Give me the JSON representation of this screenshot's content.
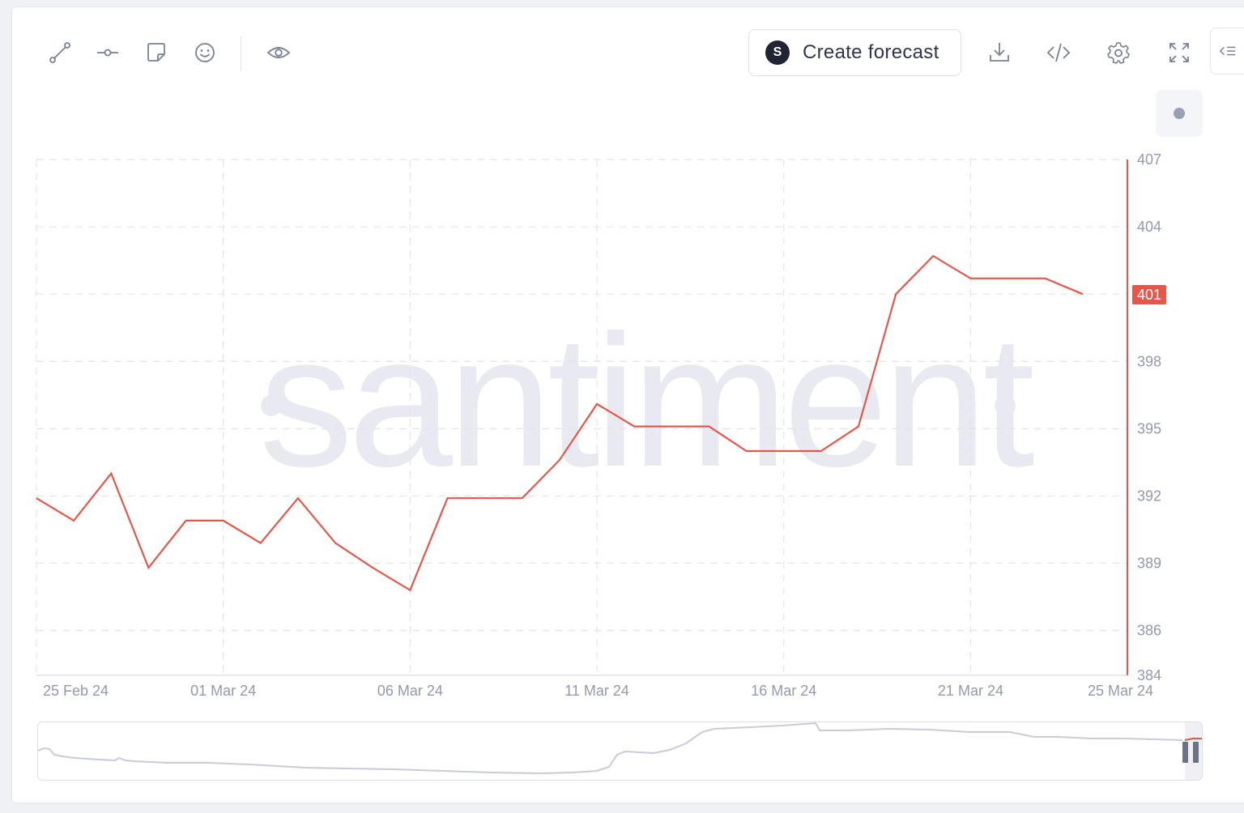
{
  "toolbar": {
    "tools": [
      {
        "name": "trend-line-tool",
        "icon": "line-segment-icon"
      },
      {
        "name": "horizontal-line-tool",
        "icon": "horizontal-ray-icon"
      },
      {
        "name": "note-tool",
        "icon": "sticky-note-icon"
      },
      {
        "name": "emoji-tool",
        "icon": "smiley-icon"
      },
      {
        "name": "visibility-tool",
        "icon": "eye-icon"
      }
    ],
    "forecast_button": {
      "label": "Create forecast",
      "logo_letter": "S"
    },
    "actions": [
      {
        "name": "download-button",
        "icon": "download-icon"
      },
      {
        "name": "embed-button",
        "icon": "code-icon"
      },
      {
        "name": "settings-button",
        "icon": "gear-icon"
      },
      {
        "name": "fullscreen-button",
        "icon": "expand-icon"
      }
    ]
  },
  "watermark": "santiment",
  "colors": {
    "series": "#e5574b",
    "grid": "#e3e4ea",
    "axis_text": "#9499ab",
    "navigator_line": "#c9cbd8"
  },
  "chart_data": {
    "type": "line",
    "title": "",
    "xlabel": "",
    "ylabel": "",
    "x": [
      "2024-02-25",
      "2024-02-26",
      "2024-02-27",
      "2024-02-28",
      "2024-02-29",
      "2024-03-01",
      "2024-03-02",
      "2024-03-03",
      "2024-03-04",
      "2024-03-05",
      "2024-03-06",
      "2024-03-07",
      "2024-03-08",
      "2024-03-09",
      "2024-03-10",
      "2024-03-11",
      "2024-03-12",
      "2024-03-13",
      "2024-03-14",
      "2024-03-15",
      "2024-03-16",
      "2024-03-17",
      "2024-03-18",
      "2024-03-19",
      "2024-03-20",
      "2024-03-21",
      "2024-03-22",
      "2024-03-23",
      "2024-03-24"
    ],
    "series": [
      {
        "values": [
          391.9,
          390.9,
          393.0,
          388.8,
          390.9,
          390.9,
          389.9,
          391.9,
          389.9,
          388.8,
          387.8,
          391.9,
          391.9,
          391.9,
          393.6,
          396.1,
          395.1,
          395.1,
          395.1,
          394.0,
          394.0,
          394.0,
          395.1,
          401.0,
          402.7,
          401.7,
          401.7,
          401.7,
          401.0
        ]
      }
    ],
    "x_ticks": [
      "25 Feb 24",
      "01 Mar 24",
      "06 Mar 24",
      "11 Mar 24",
      "16 Mar 24",
      "21 Mar 24",
      "25 Mar 24"
    ],
    "y_ticks": [
      384,
      386,
      389,
      392,
      395,
      398,
      401,
      404,
      407
    ],
    "ylim": [
      384,
      407
    ],
    "last_value_label": "401",
    "grid": true,
    "navigator": true
  }
}
